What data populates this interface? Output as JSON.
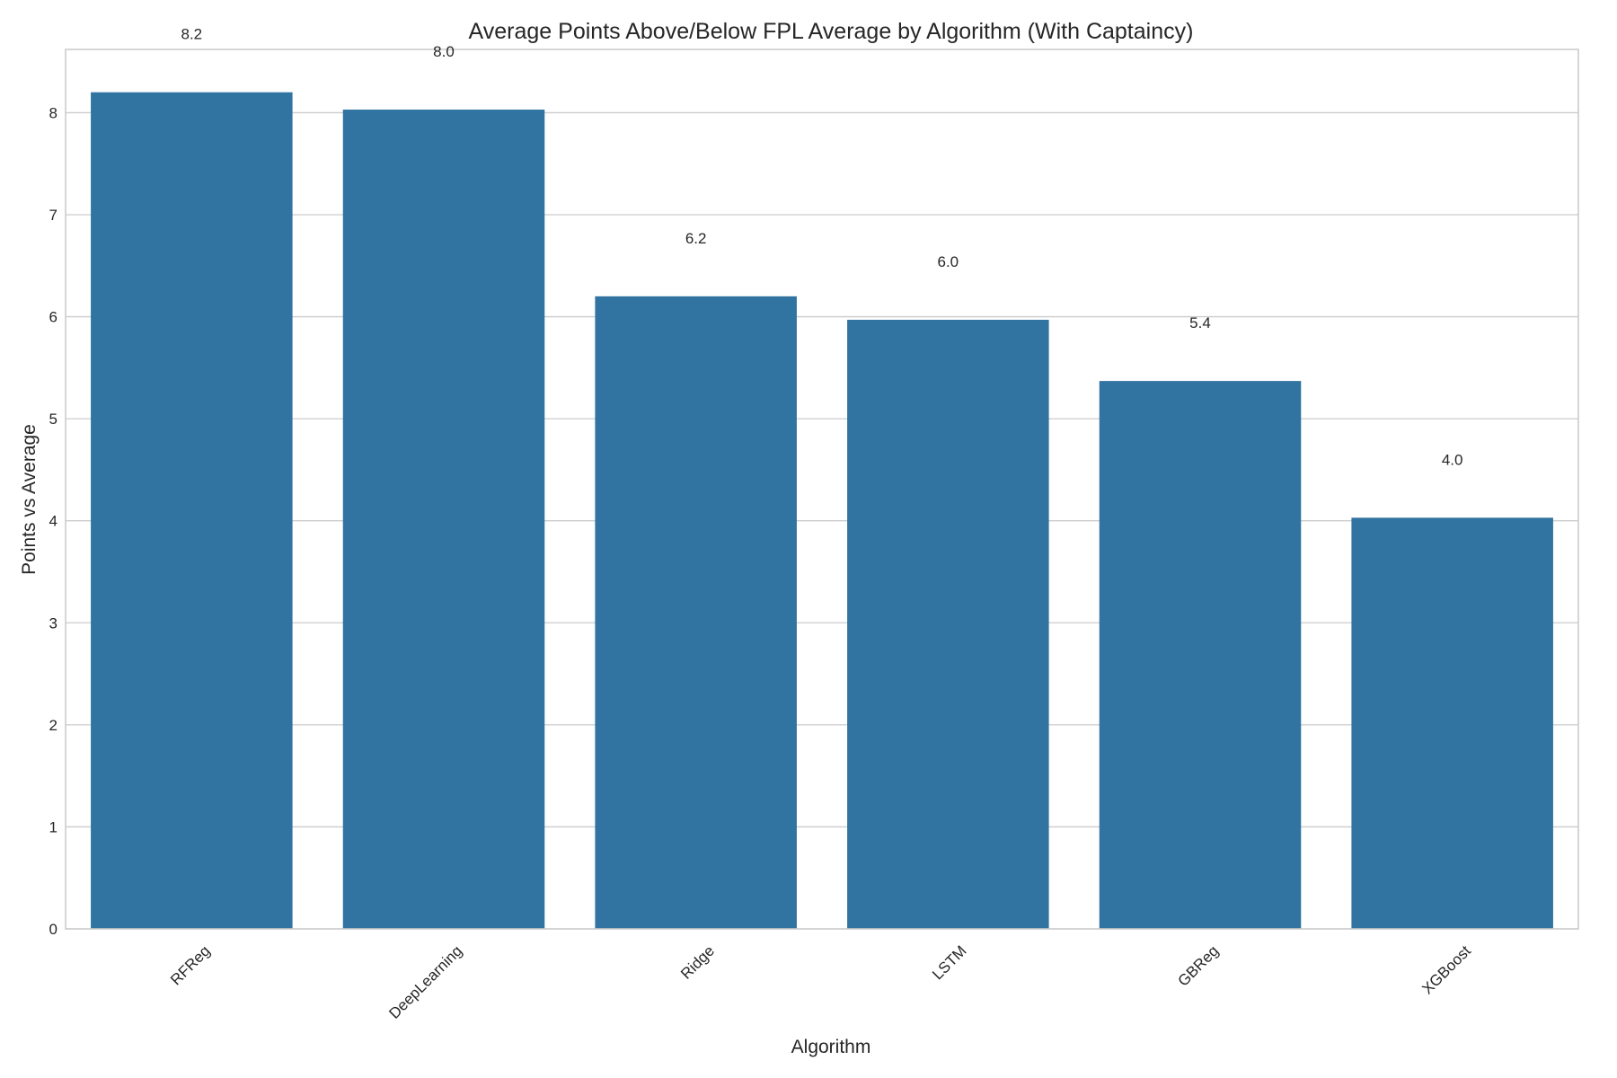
{
  "chart_data": {
    "type": "bar",
    "title": "Average Points Above/Below FPL Average by Algorithm (With Captaincy)",
    "xlabel": "Algorithm",
    "ylabel": "Points vs Average",
    "categories": [
      "RFReg",
      "DeepLearning",
      "Ridge",
      "LSTM",
      "GBReg",
      "XGBoost"
    ],
    "values": [
      8.2,
      8.03,
      6.2,
      5.97,
      5.37,
      4.03
    ],
    "data_labels": [
      "8.2",
      "8.0",
      "6.2",
      "6.0",
      "5.4",
      "4.0"
    ],
    "ylim": [
      0,
      8.62
    ],
    "yticks": [
      0,
      1,
      2,
      3,
      4,
      5,
      6,
      7,
      8
    ],
    "grid": true,
    "bar_color": "#3274a1",
    "style": "whitegrid"
  }
}
